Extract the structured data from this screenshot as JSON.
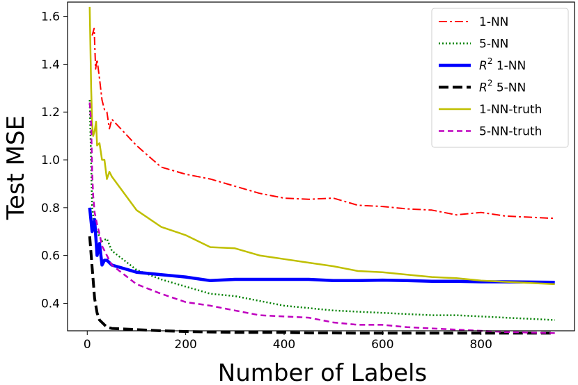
{
  "chart_data": {
    "type": "line",
    "title": "",
    "xlabel": "Number of Labels",
    "ylabel": "Test MSE",
    "xlim": [
      -40,
      990
    ],
    "ylim": [
      0.285,
      1.66
    ],
    "xticks": [
      0,
      200,
      400,
      600,
      800
    ],
    "yticks": [
      0.4,
      0.6,
      0.8,
      1.0,
      1.2,
      1.4,
      1.6
    ],
    "xtick_labels": [
      "0",
      "200",
      "400",
      "600",
      "800"
    ],
    "ytick_labels": [
      "0.4",
      "0.6",
      "0.8",
      "1.0",
      "1.2",
      "1.4",
      "1.6"
    ],
    "grid": false,
    "legend_position": "top-right",
    "series": [
      {
        "name": "1-NN",
        "label_parts": [
          "1-NN"
        ],
        "superscript": "",
        "color": "#ff0000",
        "dash": "12,4,3,4",
        "width": 2,
        "x": [
          10,
          14,
          17,
          20,
          25,
          30,
          35,
          40,
          45,
          50,
          100,
          150,
          200,
          250,
          300,
          350,
          400,
          450,
          500,
          550,
          600,
          650,
          700,
          750,
          800,
          850,
          950
        ],
        "y": [
          1.52,
          1.55,
          1.38,
          1.42,
          1.34,
          1.25,
          1.21,
          1.2,
          1.13,
          1.17,
          1.06,
          0.97,
          0.94,
          0.92,
          0.89,
          0.86,
          0.84,
          0.835,
          0.84,
          0.81,
          0.805,
          0.795,
          0.79,
          0.77,
          0.78,
          0.765,
          0.755
        ]
      },
      {
        "name": "5-NN",
        "label_parts": [
          "5-NN"
        ],
        "superscript": "",
        "color": "#008000",
        "dash": "2,3",
        "width": 2.5,
        "x": [
          5,
          10,
          15,
          20,
          25,
          30,
          40,
          50,
          100,
          150,
          200,
          250,
          300,
          350,
          400,
          450,
          500,
          550,
          600,
          650,
          700,
          750,
          800,
          850,
          950
        ],
        "y": [
          1.25,
          0.8,
          0.72,
          0.7,
          0.68,
          0.66,
          0.67,
          0.62,
          0.54,
          0.5,
          0.47,
          0.44,
          0.43,
          0.41,
          0.39,
          0.38,
          0.37,
          0.365,
          0.36,
          0.355,
          0.35,
          0.35,
          0.345,
          0.34,
          0.33
        ]
      },
      {
        "name": "R² 1-NN",
        "label_parts": [
          "R",
          "1-NN"
        ],
        "superscript": "2",
        "color": "#0000ff",
        "dash": "",
        "width": 4.5,
        "x": [
          5,
          10,
          15,
          20,
          25,
          30,
          35,
          40,
          50,
          100,
          150,
          200,
          250,
          300,
          350,
          400,
          450,
          500,
          550,
          600,
          650,
          700,
          750,
          800,
          850,
          950
        ],
        "y": [
          0.8,
          0.7,
          0.75,
          0.6,
          0.65,
          0.56,
          0.58,
          0.58,
          0.56,
          0.53,
          0.52,
          0.51,
          0.495,
          0.5,
          0.5,
          0.5,
          0.5,
          0.495,
          0.495,
          0.497,
          0.495,
          0.492,
          0.492,
          0.49,
          0.49,
          0.488
        ]
      },
      {
        "name": "R² 5-NN",
        "label_parts": [
          "R",
          "5-NN"
        ],
        "superscript": "2",
        "color": "#000000",
        "dash": "14,6",
        "width": 4,
        "x": [
          5,
          10,
          15,
          20,
          25,
          30,
          40,
          50,
          100,
          150,
          200,
          250,
          300,
          350,
          400,
          450,
          500,
          550,
          600,
          650,
          700,
          750,
          800,
          850,
          950
        ],
        "y": [
          0.68,
          0.55,
          0.42,
          0.36,
          0.33,
          0.32,
          0.3,
          0.295,
          0.29,
          0.285,
          0.282,
          0.28,
          0.278,
          0.278,
          0.278,
          0.276,
          0.276,
          0.275,
          0.275,
          0.275,
          0.275,
          0.275,
          0.275,
          0.275,
          0.275
        ]
      },
      {
        "name": "1-NN-truth",
        "label_parts": [
          "1-NN-truth"
        ],
        "superscript": "",
        "color": "#bfbf00",
        "dash": "",
        "width": 2.5,
        "x": [
          5,
          8,
          10,
          12,
          15,
          18,
          20,
          25,
          30,
          35,
          40,
          45,
          50,
          100,
          150,
          200,
          250,
          300,
          350,
          400,
          450,
          500,
          550,
          600,
          650,
          700,
          750,
          800,
          850,
          950
        ],
        "y": [
          1.64,
          1.3,
          1.15,
          1.1,
          1.12,
          1.16,
          1.06,
          1.07,
          1.0,
          1.0,
          0.92,
          0.95,
          0.93,
          0.79,
          0.72,
          0.685,
          0.635,
          0.63,
          0.6,
          0.585,
          0.57,
          0.555,
          0.535,
          0.53,
          0.52,
          0.51,
          0.505,
          0.495,
          0.49,
          0.48
        ]
      },
      {
        "name": "5-NN-truth",
        "label_parts": [
          "5-NN-truth"
        ],
        "superscript": "",
        "color": "#bf00bf",
        "dash": "8,5",
        "width": 2.5,
        "x": [
          5,
          8,
          10,
          12,
          15,
          18,
          20,
          25,
          30,
          40,
          50,
          100,
          150,
          200,
          250,
          300,
          350,
          400,
          450,
          500,
          550,
          600,
          650,
          700,
          750,
          800,
          850,
          950
        ],
        "y": [
          1.24,
          1.15,
          0.95,
          0.85,
          0.78,
          0.75,
          0.73,
          0.69,
          0.64,
          0.6,
          0.56,
          0.48,
          0.44,
          0.405,
          0.39,
          0.37,
          0.35,
          0.345,
          0.34,
          0.32,
          0.31,
          0.31,
          0.3,
          0.295,
          0.29,
          0.285,
          0.28,
          0.275
        ]
      }
    ]
  }
}
